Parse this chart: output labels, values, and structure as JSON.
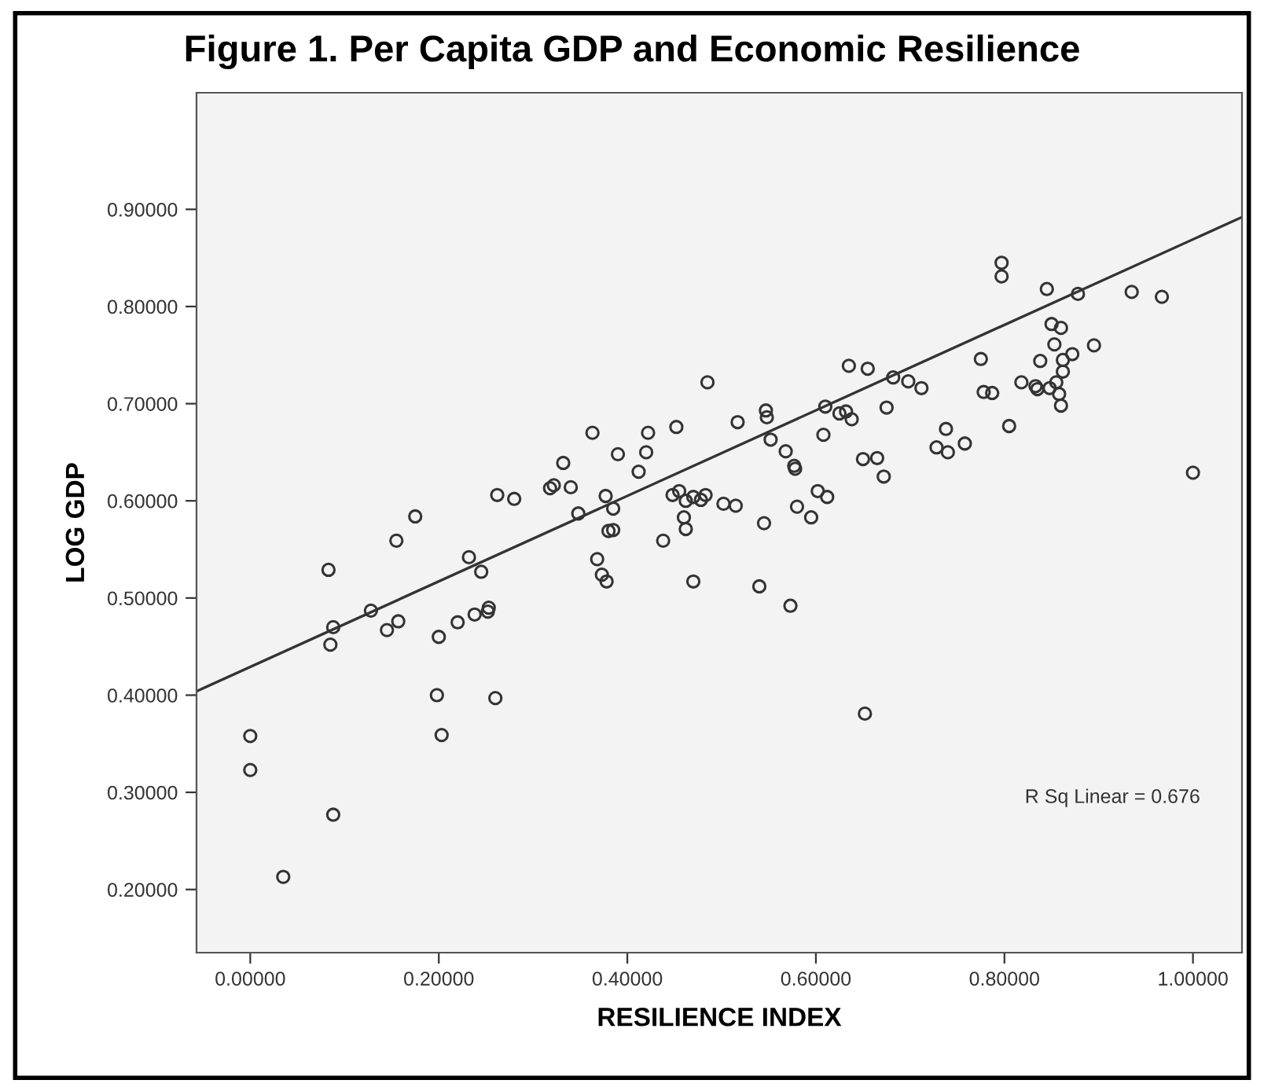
{
  "chart_data": {
    "type": "scatter",
    "title": "Figure 1. Per Capita GDP and Economic Resilience",
    "xlabel": "RESILIENCE INDEX",
    "ylabel": "LOG GDP",
    "xlim": [
      -0.057,
      1.052
    ],
    "ylim": [
      0.135,
      1.02
    ],
    "xticks": [
      {
        "value": 0,
        "label": "0.00000"
      },
      {
        "value": 0.2,
        "label": "0.20000"
      },
      {
        "value": 0.4,
        "label": "0.40000"
      },
      {
        "value": 0.6,
        "label": "0.60000"
      },
      {
        "value": 0.8,
        "label": "0.80000"
      },
      {
        "value": 1.0,
        "label": "1.00000"
      }
    ],
    "yticks": [
      {
        "value": 0.2,
        "label": "0.20000"
      },
      {
        "value": 0.3,
        "label": "0.30000"
      },
      {
        "value": 0.4,
        "label": "0.40000"
      },
      {
        "value": 0.5,
        "label": "0.50000"
      },
      {
        "value": 0.6,
        "label": "0.60000"
      },
      {
        "value": 0.7,
        "label": "0.70000"
      },
      {
        "value": 0.8,
        "label": "0.80000"
      },
      {
        "value": 0.9,
        "label": "0.90000"
      }
    ],
    "grid": false,
    "legend": false,
    "annotations": [
      "R Sq Linear = 0.676"
    ],
    "series": [
      {
        "marker": "circle",
        "color": "#333333",
        "x": [
          0.0,
          0.0,
          0.035,
          0.088,
          0.083,
          0.088,
          0.085,
          0.128,
          0.145,
          0.157,
          0.155,
          0.175,
          0.198,
          0.203,
          0.2,
          0.22,
          0.232,
          0.238,
          0.245,
          0.252,
          0.253,
          0.262,
          0.26,
          0.28,
          0.318,
          0.322,
          0.332,
          0.34,
          0.348,
          0.363,
          0.368,
          0.373,
          0.377,
          0.378,
          0.38,
          0.385,
          0.385,
          0.39,
          0.412,
          0.42,
          0.422,
          0.438,
          0.448,
          0.452,
          0.455,
          0.46,
          0.462,
          0.462,
          0.47,
          0.47,
          0.478,
          0.483,
          0.485,
          0.502,
          0.515,
          0.517,
          0.54,
          0.545,
          0.547,
          0.548,
          0.552,
          0.568,
          0.573,
          0.577,
          0.578,
          0.58,
          0.595,
          0.602,
          0.608,
          0.61,
          0.612,
          0.625,
          0.632,
          0.638,
          0.635,
          0.65,
          0.652,
          0.655,
          0.665,
          0.672,
          0.675,
          0.682,
          0.698,
          0.712,
          0.728,
          0.738,
          0.74,
          0.758,
          0.775,
          0.778,
          0.787,
          0.797,
          0.797,
          0.805,
          0.818,
          0.833,
          0.835,
          0.838,
          0.845,
          0.848,
          0.85,
          0.853,
          0.855,
          0.858,
          0.86,
          0.86,
          0.862,
          0.862,
          0.872,
          0.878,
          0.895,
          0.935,
          0.967,
          1.0
        ],
        "values": [
          0.358,
          0.323,
          0.213,
          0.277,
          0.529,
          0.47,
          0.452,
          0.487,
          0.467,
          0.476,
          0.559,
          0.584,
          0.4,
          0.359,
          0.46,
          0.475,
          0.542,
          0.483,
          0.527,
          0.486,
          0.49,
          0.606,
          0.397,
          0.602,
          0.613,
          0.616,
          0.639,
          0.614,
          0.587,
          0.67,
          0.54,
          0.524,
          0.605,
          0.517,
          0.569,
          0.592,
          0.57,
          0.648,
          0.63,
          0.65,
          0.67,
          0.559,
          0.606,
          0.676,
          0.61,
          0.583,
          0.571,
          0.6,
          0.517,
          0.604,
          0.601,
          0.606,
          0.722,
          0.597,
          0.595,
          0.681,
          0.512,
          0.577,
          0.693,
          0.686,
          0.663,
          0.651,
          0.492,
          0.636,
          0.633,
          0.594,
          0.583,
          0.61,
          0.668,
          0.697,
          0.604,
          0.69,
          0.692,
          0.684,
          0.739,
          0.643,
          0.381,
          0.736,
          0.644,
          0.625,
          0.696,
          0.727,
          0.723,
          0.716,
          0.655,
          0.674,
          0.65,
          0.659,
          0.746,
          0.712,
          0.711,
          0.845,
          0.831,
          0.677,
          0.722,
          0.718,
          0.715,
          0.744,
          0.818,
          0.716,
          0.782,
          0.761,
          0.722,
          0.71,
          0.698,
          0.778,
          0.745,
          0.733,
          0.751,
          0.813,
          0.76,
          0.815,
          0.81,
          0.629
        ]
      },
      {
        "type": "line",
        "marker": "none",
        "line_style": "solid",
        "color": "#333333",
        "x": [
          -0.057,
          1.052
        ],
        "values": [
          0.404,
          0.892
        ]
      }
    ]
  }
}
